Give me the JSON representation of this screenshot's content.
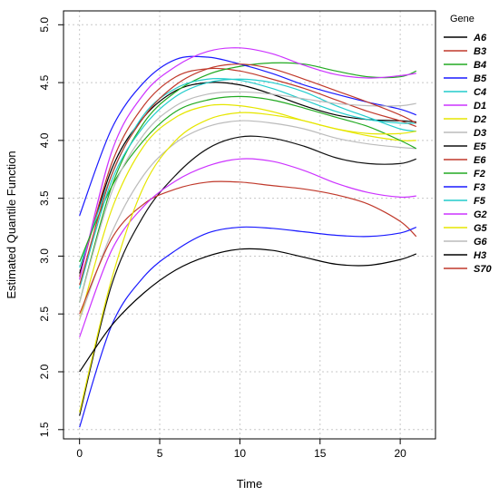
{
  "chart_data": {
    "type": "line",
    "xlabel": "Time",
    "ylabel": "Estimated Quantile Function",
    "xlim": [
      -1,
      22.2
    ],
    "ylim": [
      1.42,
      5.12
    ],
    "xticks": [
      0,
      5,
      10,
      15,
      20
    ],
    "yticks": [
      1.5,
      2.0,
      2.5,
      3.0,
      3.5,
      4.0,
      4.5,
      5.0
    ],
    "xtick_labels": [
      "0",
      "5",
      "10",
      "15",
      "20"
    ],
    "ytick_labels": [
      "1.5",
      "2.0",
      "2.5",
      "3.0",
      "3.5",
      "4.0",
      "4.5",
      "5.0"
    ],
    "grid": true,
    "legend_title": "Gene",
    "legend_position": "right",
    "series": [
      {
        "name": "A6",
        "color": "#000000",
        "x": [
          0,
          2,
          4,
          6,
          8,
          10,
          12,
          14,
          16,
          18,
          20,
          21
        ],
        "y": [
          2.85,
          3.75,
          4.2,
          4.43,
          4.5,
          4.48,
          4.4,
          4.3,
          4.22,
          4.18,
          4.17,
          4.16
        ]
      },
      {
        "name": "B3",
        "color": "#c0392b",
        "x": [
          0,
          2,
          4,
          6,
          8,
          10,
          12,
          14,
          16,
          18,
          20,
          21
        ],
        "y": [
          2.82,
          3.8,
          4.3,
          4.55,
          4.62,
          4.6,
          4.53,
          4.45,
          4.35,
          4.25,
          4.17,
          4.12
        ]
      },
      {
        "name": "B4",
        "color": "#22aa22",
        "x": [
          0,
          2,
          4,
          6,
          8,
          10,
          12,
          14,
          16,
          18,
          20,
          21
        ],
        "y": [
          2.6,
          3.6,
          4.15,
          4.42,
          4.57,
          4.64,
          4.67,
          4.66,
          4.6,
          4.55,
          4.55,
          4.6
        ]
      },
      {
        "name": "B5",
        "color": "#1a1aff",
        "x": [
          0,
          2,
          4,
          6,
          8,
          10,
          12,
          14,
          16,
          18,
          20,
          21
        ],
        "y": [
          3.35,
          4.1,
          4.5,
          4.7,
          4.72,
          4.66,
          4.58,
          4.48,
          4.4,
          4.33,
          4.27,
          4.22
        ]
      },
      {
        "name": "C4",
        "color": "#22cccc",
        "x": [
          0,
          2,
          4,
          6,
          8,
          10,
          12,
          14,
          16,
          18,
          20,
          21
        ],
        "y": [
          2.9,
          3.7,
          4.22,
          4.45,
          4.53,
          4.52,
          4.45,
          4.35,
          4.25,
          4.18,
          4.15,
          4.15
        ]
      },
      {
        "name": "D1",
        "color": "#cc33ff",
        "x": [
          0,
          2,
          4,
          6,
          8,
          10,
          12,
          14,
          16,
          18,
          20,
          21
        ],
        "y": [
          2.8,
          3.9,
          4.4,
          4.64,
          4.77,
          4.8,
          4.75,
          4.65,
          4.57,
          4.54,
          4.56,
          4.58
        ]
      },
      {
        "name": "D2",
        "color": "#e6e600",
        "x": [
          0,
          2,
          4,
          6,
          8,
          10,
          12,
          14,
          16,
          18,
          20,
          21
        ],
        "y": [
          2.45,
          3.4,
          3.95,
          4.2,
          4.3,
          4.3,
          4.25,
          4.17,
          4.1,
          4.04,
          4.0,
          4.0
        ]
      },
      {
        "name": "D3",
        "color": "#bbbbbb",
        "x": [
          0,
          2,
          4,
          6,
          8,
          10,
          12,
          14,
          16,
          18,
          20,
          21
        ],
        "y": [
          2.45,
          3.2,
          3.7,
          3.98,
          4.12,
          4.17,
          4.15,
          4.1,
          4.02,
          3.97,
          3.94,
          3.93
        ]
      },
      {
        "name": "E5",
        "color": "#111111",
        "x": [
          0,
          2,
          4,
          6,
          8,
          10,
          12,
          14,
          16,
          18,
          20,
          21
        ],
        "y": [
          1.62,
          2.75,
          3.35,
          3.7,
          3.93,
          4.03,
          4.02,
          3.95,
          3.85,
          3.8,
          3.8,
          3.84
        ]
      },
      {
        "name": "E6",
        "color": "#c0392b",
        "x": [
          0,
          2,
          4,
          6,
          8,
          10,
          12,
          14,
          16,
          18,
          20,
          21
        ],
        "y": [
          2.5,
          3.15,
          3.45,
          3.58,
          3.64,
          3.64,
          3.61,
          3.58,
          3.53,
          3.45,
          3.3,
          3.17
        ]
      },
      {
        "name": "F2",
        "color": "#22aa22",
        "x": [
          0,
          2,
          4,
          6,
          8,
          10,
          12,
          14,
          16,
          18,
          20,
          21
        ],
        "y": [
          2.95,
          3.6,
          4.0,
          4.25,
          4.35,
          4.38,
          4.35,
          4.28,
          4.2,
          4.12,
          4.0,
          3.93
        ]
      },
      {
        "name": "F3",
        "color": "#1a1aff",
        "x": [
          0,
          2,
          4,
          6,
          8,
          10,
          12,
          14,
          16,
          18,
          20,
          21
        ],
        "y": [
          1.52,
          2.4,
          2.82,
          3.05,
          3.2,
          3.25,
          3.24,
          3.21,
          3.18,
          3.17,
          3.2,
          3.25
        ]
      },
      {
        "name": "F5",
        "color": "#22cccc",
        "x": [
          0,
          2,
          4,
          6,
          8,
          10,
          12,
          14,
          16,
          18,
          20,
          21
        ],
        "y": [
          2.72,
          3.65,
          4.12,
          4.38,
          4.5,
          4.53,
          4.5,
          4.42,
          4.3,
          4.2,
          4.1,
          4.08
        ]
      },
      {
        "name": "G2",
        "color": "#cc33ff",
        "x": [
          0,
          2,
          4,
          6,
          8,
          10,
          12,
          14,
          16,
          18,
          20,
          21
        ],
        "y": [
          2.3,
          3.05,
          3.43,
          3.65,
          3.78,
          3.84,
          3.82,
          3.74,
          3.63,
          3.55,
          3.51,
          3.52
        ]
      },
      {
        "name": "G5",
        "color": "#e6e600",
        "x": [
          0,
          2,
          4,
          6,
          8,
          10,
          12,
          14,
          16,
          18,
          20,
          21
        ],
        "y": [
          1.65,
          2.8,
          3.6,
          4.0,
          4.18,
          4.24,
          4.22,
          4.17,
          4.1,
          4.06,
          4.06,
          4.08
        ]
      },
      {
        "name": "G6",
        "color": "#bbbbbb",
        "x": [
          0,
          2,
          4,
          6,
          8,
          10,
          12,
          14,
          16,
          18,
          20,
          21
        ],
        "y": [
          2.6,
          3.55,
          4.05,
          4.3,
          4.4,
          4.42,
          4.4,
          4.36,
          4.32,
          4.3,
          4.3,
          4.32
        ]
      },
      {
        "name": "H3",
        "color": "#000000",
        "x": [
          0,
          2,
          4,
          6,
          8,
          10,
          12,
          14,
          16,
          18,
          20,
          21
        ],
        "y": [
          2.0,
          2.4,
          2.68,
          2.88,
          3.0,
          3.06,
          3.05,
          2.99,
          2.93,
          2.92,
          2.97,
          3.02
        ]
      },
      {
        "name": "S70",
        "color": "#c0392b",
        "x": [
          0,
          2,
          4,
          6,
          8,
          10,
          12,
          14,
          16,
          18,
          20,
          21
        ],
        "y": [
          2.75,
          3.7,
          4.2,
          4.48,
          4.62,
          4.66,
          4.62,
          4.53,
          4.43,
          4.33,
          4.22,
          4.15
        ]
      }
    ]
  }
}
